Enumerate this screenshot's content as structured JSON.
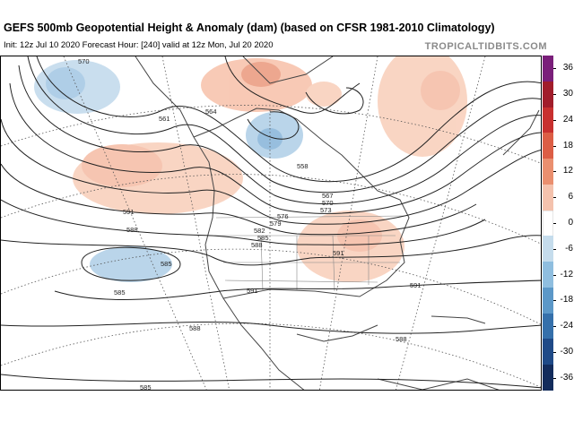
{
  "title": "GEFS 500mb Geopotential Height & Anomaly (dam) (based on CFSR 1981-2010 Climatology)",
  "subtitle": "Init: 12z Jul 10 2020   Forecast Hour: [240]   valid at 12z Mon, Jul 20 2020",
  "brand": "TROPICALTIDBITS.COM",
  "colorbar": {
    "labels": [
      "36",
      "30",
      "24",
      "18",
      "12",
      "6",
      "0",
      "-6",
      "-12",
      "-18",
      "-24",
      "-30",
      "-36"
    ],
    "colors": [
      "#7a1f7a",
      "#a11d2b",
      "#c8302f",
      "#dc5e45",
      "#ea8f6f",
      "#f4c2ad",
      "#ffffff",
      "#c5dcec",
      "#8fbedf",
      "#5c98c8",
      "#3570ab",
      "#1f4a87",
      "#132c5c"
    ]
  },
  "contour_labels": [
    "570",
    "561",
    "564",
    "558",
    "567",
    "570",
    "573",
    "576",
    "579",
    "582",
    "585",
    "588",
    "591",
    "591",
    "588",
    "585",
    "585",
    "588",
    "585",
    "591",
    "591",
    "588"
  ],
  "map_features": {
    "anomaly_positive_color": "#f0a080",
    "anomaly_negative_color": "#8fbedf",
    "land_border_color": "#555555"
  }
}
